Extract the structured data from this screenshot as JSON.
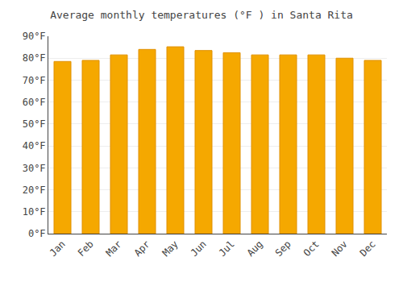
{
  "chart_data": {
    "type": "bar",
    "title": "Average monthly temperatures (°F ) in Santa Rita",
    "categories": [
      "Jan",
      "Feb",
      "Mar",
      "Apr",
      "May",
      "Jun",
      "Jul",
      "Aug",
      "Sep",
      "Oct",
      "Nov",
      "Dec"
    ],
    "values": [
      78.5,
      79.0,
      81.5,
      84.0,
      85.2,
      83.5,
      82.5,
      81.5,
      81.5,
      81.5,
      80.0,
      79.0
    ],
    "color": "#F5A800",
    "ylim": [
      0,
      90
    ],
    "yticks": [
      {
        "value": 0,
        "label": "0°F"
      },
      {
        "value": 10,
        "label": "10°F"
      },
      {
        "value": 20,
        "label": "20°F"
      },
      {
        "value": 30,
        "label": "30°F"
      },
      {
        "value": 40,
        "label": "40°F"
      },
      {
        "value": 50,
        "label": "50°F"
      },
      {
        "value": 60,
        "label": "60°F"
      },
      {
        "value": 70,
        "label": "70°F"
      },
      {
        "value": 80,
        "label": "80°F"
      },
      {
        "value": 90,
        "label": "90°F"
      }
    ],
    "grid": true
  }
}
